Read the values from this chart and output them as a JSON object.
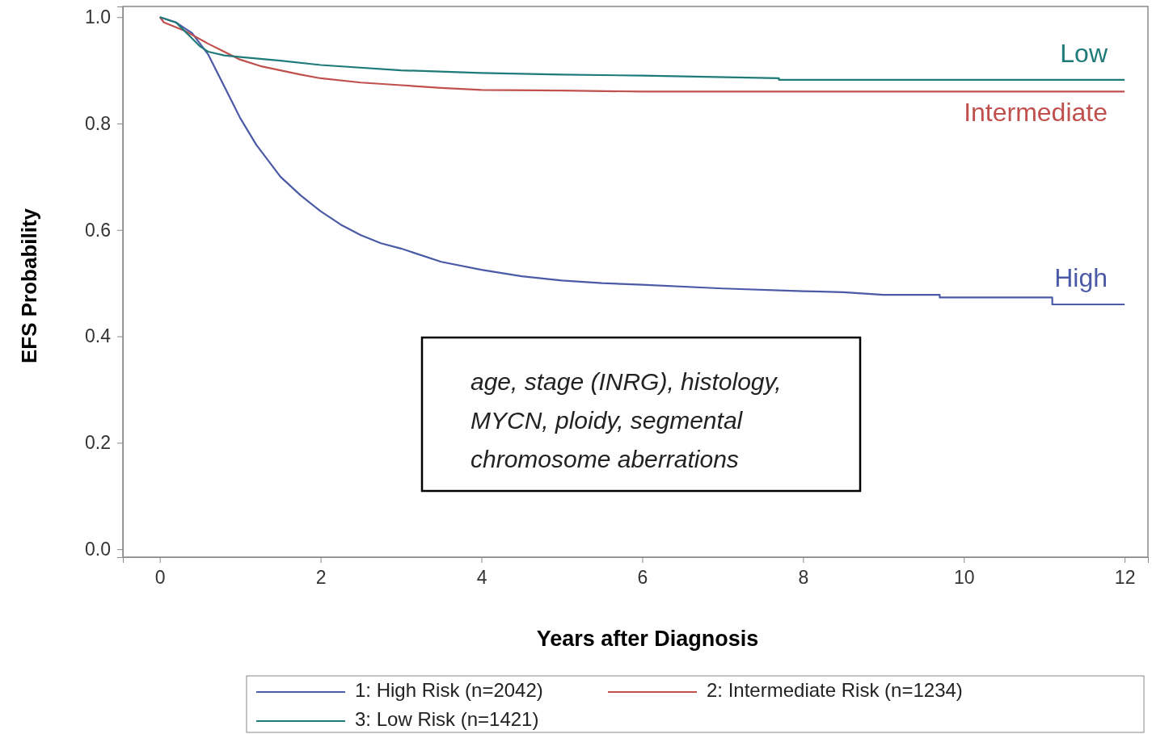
{
  "chart_data": {
    "type": "line",
    "xlabel": "Years after Diagnosis",
    "ylabel": "EFS Probability",
    "xlim": [
      -0.46,
      12.29
    ],
    "ylim": [
      -0.015,
      1.02
    ],
    "xticks": [
      0,
      2,
      4,
      6,
      8,
      10,
      12
    ],
    "yticks": [
      {
        "value": 0,
        "label": "0.0"
      },
      0.2,
      0.4,
      0.6,
      0.8,
      {
        "value": 1,
        "label": "1.0"
      }
    ],
    "legend": "bottom",
    "grid": false,
    "line_style": "solid",
    "series": [
      {
        "name": "1: High Risk (n=2042)",
        "color": "#4a5aa6",
        "x": [
          0,
          0.1,
          0.2,
          0.3,
          0.4,
          0.5,
          0.6,
          0.7,
          0.8,
          0.9,
          1.0,
          1.1,
          1.2,
          1.35,
          1.5,
          1.75,
          2,
          2.25,
          2.5,
          2.75,
          3,
          3.5,
          4,
          4.5,
          5,
          5.5,
          6,
          7,
          8,
          8.5,
          9,
          9.7,
          9.7,
          11.1,
          11.1,
          12
        ],
        "values": [
          1.0,
          0.995,
          0.99,
          0.98,
          0.97,
          0.95,
          0.93,
          0.9,
          0.87,
          0.84,
          0.81,
          0.785,
          0.76,
          0.73,
          0.7,
          0.665,
          0.635,
          0.61,
          0.59,
          0.575,
          0.565,
          0.54,
          0.525,
          0.513,
          0.505,
          0.5,
          0.497,
          0.49,
          0.485,
          0.483,
          0.478,
          0.478,
          0.473,
          0.473,
          0.46,
          0.46
        ]
      },
      {
        "name": "2: Intermediate Risk (n=1234)",
        "color": "#c0504d",
        "x": [
          0,
          0.05,
          0.3,
          0.6,
          0.8,
          1,
          1.25,
          1.5,
          1.75,
          2,
          2.5,
          3,
          3.5,
          4,
          5,
          6,
          12
        ],
        "values": [
          1.0,
          0.99,
          0.975,
          0.95,
          0.935,
          0.92,
          0.908,
          0.9,
          0.892,
          0.885,
          0.877,
          0.872,
          0.867,
          0.863,
          0.862,
          0.86,
          0.86
        ]
      },
      {
        "name": "3: Low Risk (n=1421)",
        "color": "#1f7a7a",
        "x": [
          0,
          0.2,
          0.3,
          0.4,
          0.5,
          0.6,
          0.8,
          1,
          1.5,
          2,
          3,
          4,
          5,
          6,
          7.7,
          7.7,
          12
        ],
        "values": [
          1.0,
          0.99,
          0.975,
          0.96,
          0.945,
          0.935,
          0.928,
          0.925,
          0.918,
          0.91,
          0.9,
          0.895,
          0.892,
          0.89,
          0.885,
          0.882,
          0.882
        ]
      }
    ],
    "annotations": [
      "High",
      "Intermediate",
      "Low",
      "age, stage (INRG), histology, MYCN, ploidy, segmental chromosome aberrations"
    ]
  }
}
